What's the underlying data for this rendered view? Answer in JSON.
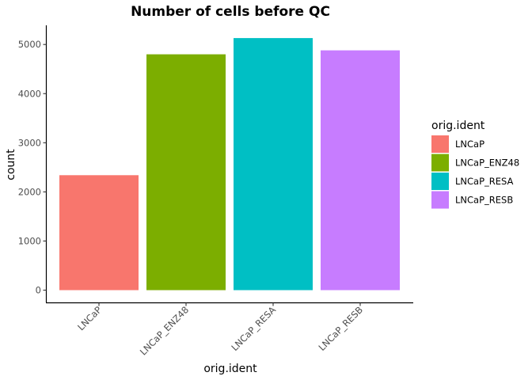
{
  "chart_data": {
    "type": "bar",
    "title": "Number of cells before QC",
    "xlabel": "orig.ident",
    "ylabel": "count",
    "categories": [
      "LNCaP",
      "LNCaP_ENZ48",
      "LNCaP_RESA",
      "LNCaP_RESB"
    ],
    "values": [
      2340,
      4800,
      5130,
      4880
    ],
    "colors": [
      "#F8766D",
      "#7CAE00",
      "#00BFC4",
      "#C77CFF"
    ],
    "ylim": [
      0,
      5400
    ],
    "yticks": [
      0,
      1000,
      2000,
      3000,
      4000,
      5000
    ],
    "ytick_labels": [
      "0",
      "1000",
      "2000",
      "3000",
      "4000",
      "5000"
    ],
    "grid": false,
    "legend": {
      "title": "orig.ident",
      "placement": "right",
      "entries": [
        "LNCaP",
        "LNCaP_ENZ48",
        "LNCaP_RESA",
        "LNCaP_RESB"
      ]
    }
  }
}
